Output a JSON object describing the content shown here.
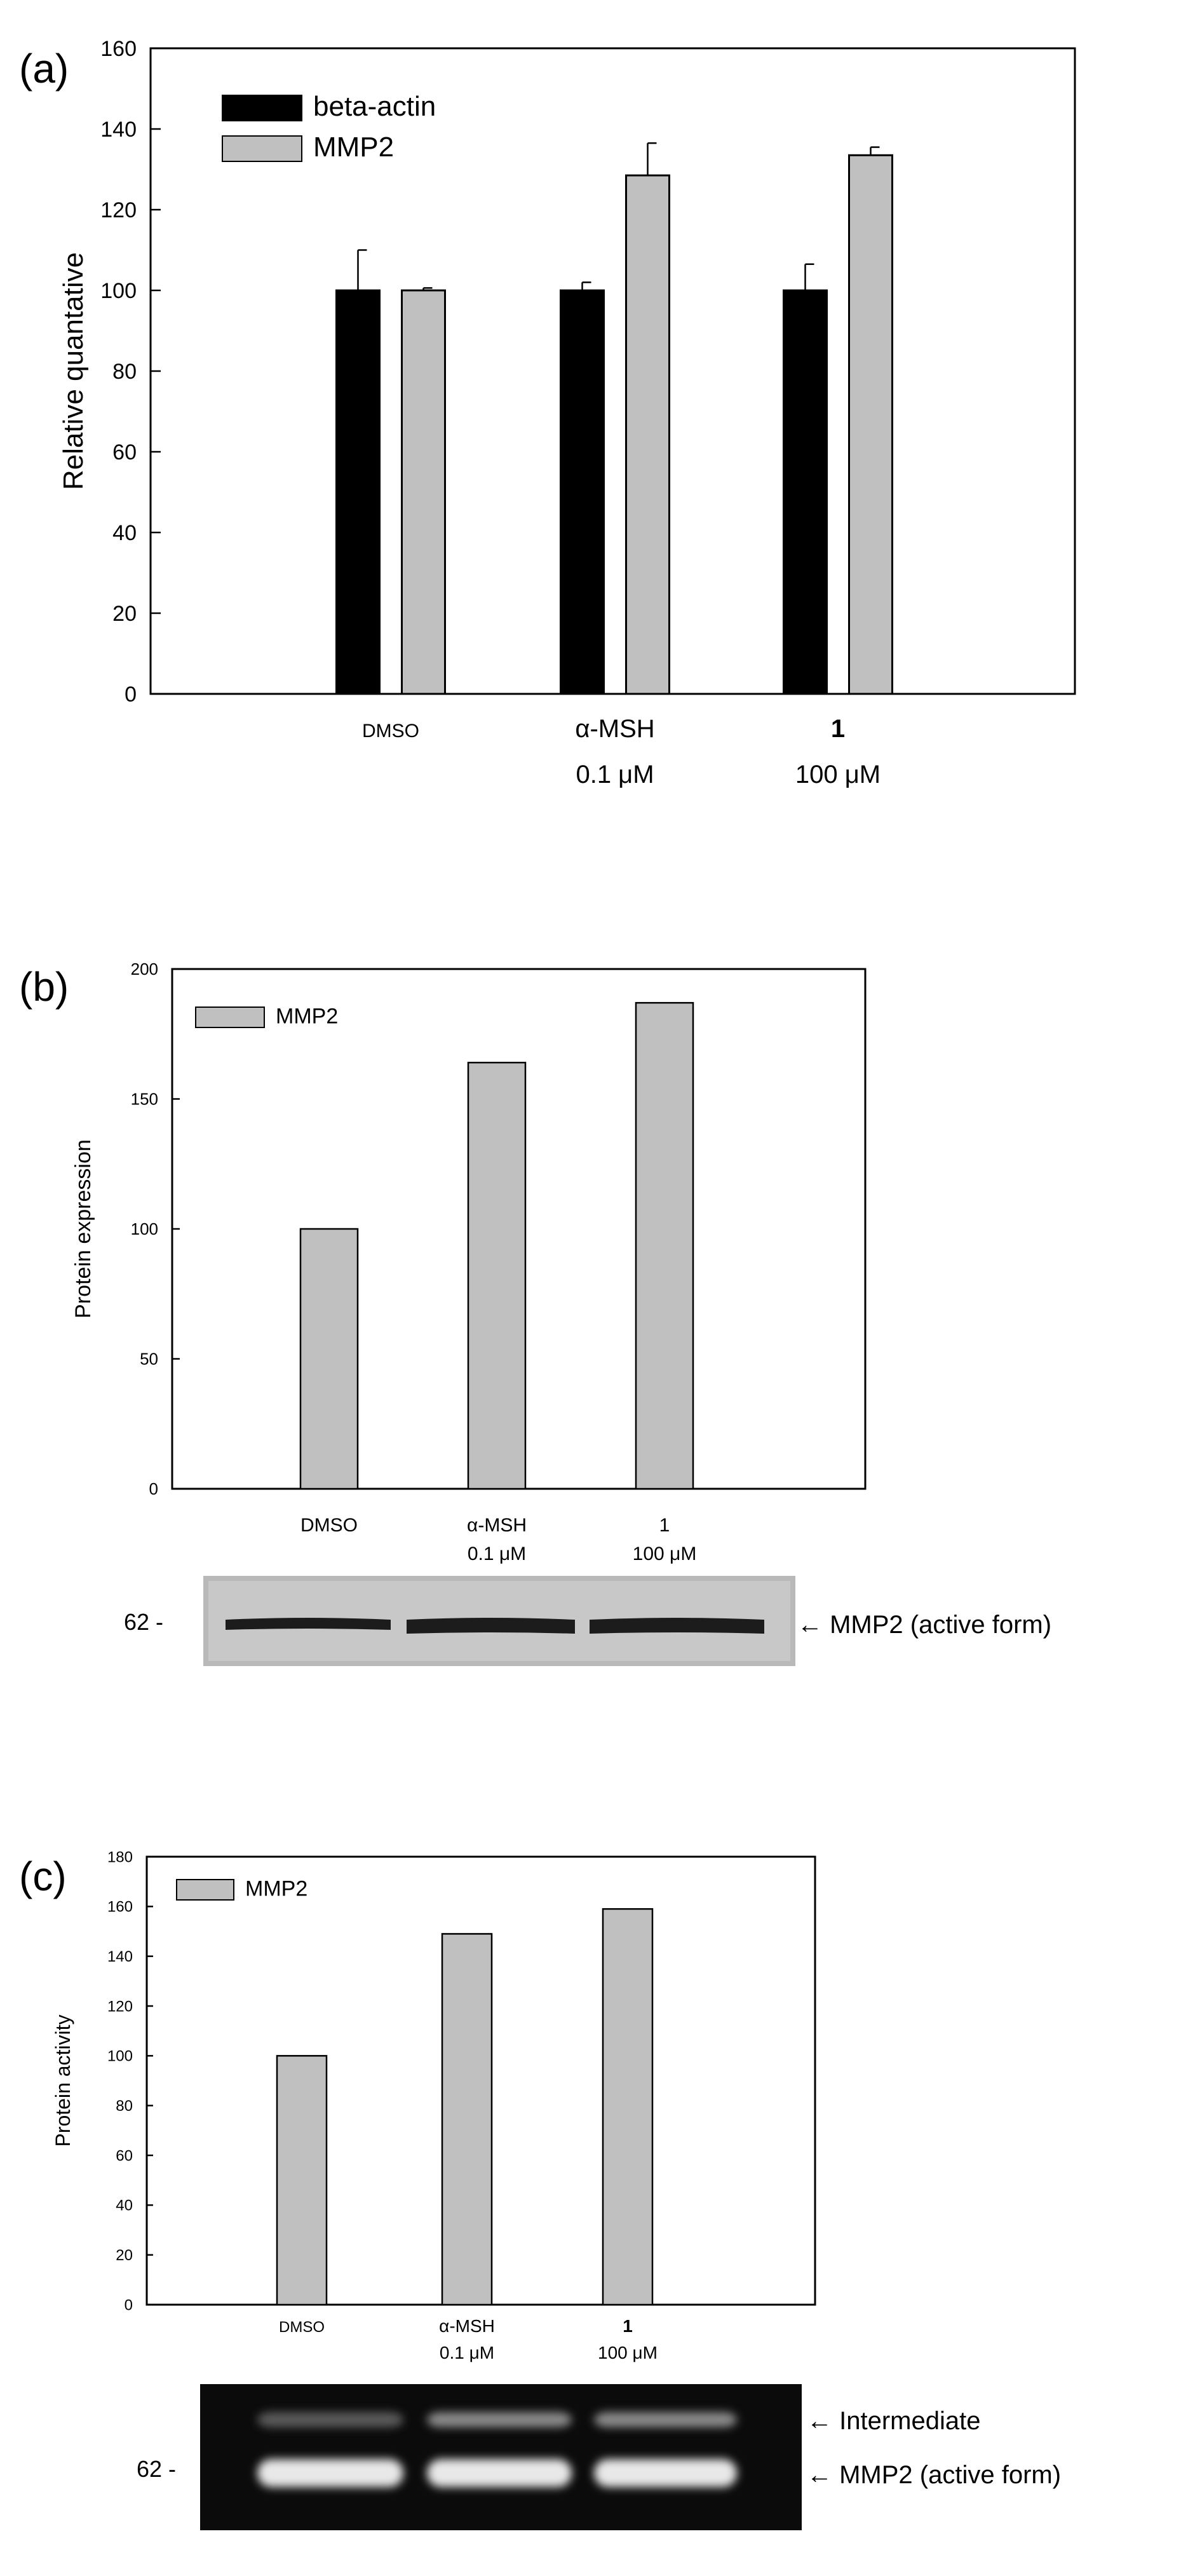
{
  "panels": {
    "a": {
      "letter": "(a)",
      "ylabel": "Relative quantative",
      "cat_lines": [
        [
          "DMSO",
          ""
        ],
        [
          "α-MSH",
          "0.1 μM"
        ],
        [
          "1",
          "100 μM"
        ]
      ]
    },
    "b": {
      "letter": "(b)",
      "ylabel": "Protein expression",
      "cat_lines": [
        [
          "DMSO",
          ""
        ],
        [
          "α-MSH",
          "0.1 μM"
        ],
        [
          "1",
          "100 μM"
        ]
      ],
      "blot": {
        "marker": "62 -",
        "bands": [
          {
            "label": "← MMP2 (active form)"
          }
        ]
      }
    },
    "c": {
      "letter": "(c)",
      "ylabel": "Protein activity",
      "cat_lines": [
        [
          "DMSO",
          ""
        ],
        [
          "α-MSH",
          "0.1  μM"
        ],
        [
          "1",
          "100 μM"
        ]
      ],
      "blot": {
        "marker": "62 -",
        "bands": [
          {
            "label": "← Intermediate"
          },
          {
            "label": "← MMP2  (active form)"
          }
        ]
      }
    }
  },
  "chart_data": [
    {
      "type": "bar",
      "categories": [
        "DMSO",
        "α-MSH 0.1 μM",
        "1 100 μM"
      ],
      "series": [
        {
          "name": "beta-actin",
          "values": [
            100,
            100,
            100
          ],
          "errors": [
            10,
            2,
            6.5
          ],
          "color": "#000000"
        },
        {
          "name": "MMP2",
          "values": [
            100,
            128.5,
            133.5
          ],
          "errors": [
            0.6,
            8,
            2
          ],
          "color": "#c0c0c0"
        }
      ],
      "ylabel": "Relative quantative",
      "ylim": [
        0,
        160
      ],
      "yticks": [
        0,
        20,
        40,
        60,
        80,
        100,
        120,
        140,
        160
      ],
      "legend": "top-left",
      "grid": false
    },
    {
      "type": "bar",
      "categories": [
        "DMSO",
        "α-MSH 0.1 μM",
        "1 100 μM"
      ],
      "series": [
        {
          "name": "MMP2",
          "values": [
            100,
            164,
            187
          ],
          "color": "#c0c0c0"
        }
      ],
      "ylabel": "Protein expression",
      "ylim": [
        0,
        200
      ],
      "yticks": [
        0,
        50,
        100,
        150,
        200
      ],
      "legend": "top-left",
      "grid": false
    },
    {
      "type": "bar",
      "categories": [
        "DMSO",
        "α-MSH 0.1 μM",
        "1 100 μM"
      ],
      "series": [
        {
          "name": "MMP2",
          "values": [
            100,
            149,
            159
          ],
          "color": "#c0c0c0"
        }
      ],
      "ylabel": "Protein activity",
      "ylim": [
        0,
        180
      ],
      "yticks": [
        0,
        20,
        40,
        60,
        80,
        100,
        120,
        140,
        160,
        180
      ],
      "legend": "top-left",
      "grid": false
    }
  ]
}
